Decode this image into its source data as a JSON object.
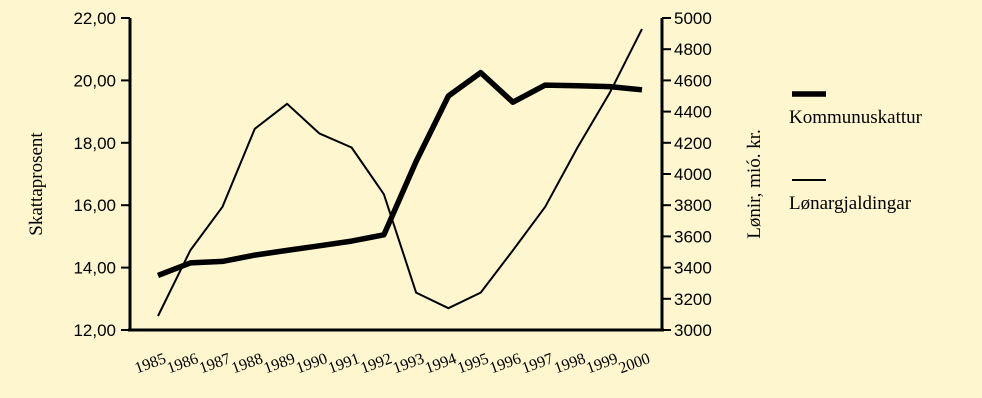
{
  "chart_data": {
    "type": "line",
    "x": [
      "1985",
      "1986",
      "1987",
      "1988",
      "1989",
      "1990",
      "1991",
      "1992",
      "1993",
      "1994",
      "1995",
      "1996",
      "1997",
      "1998",
      "1999",
      "2000"
    ],
    "ylabel_left": "Skattaprosent",
    "ylabel_right": "Lønir, mió. kr.",
    "ylim_left": [
      12,
      22
    ],
    "ylim_right": [
      3000,
      5000
    ],
    "yticks_left": [
      "12,00",
      "14,00",
      "16,00",
      "18,00",
      "20,00",
      "22,00"
    ],
    "yticks_right": [
      "3000",
      "3200",
      "3400",
      "3600",
      "3800",
      "4000",
      "4200",
      "4400",
      "4600",
      "4800",
      "5000"
    ],
    "grid": false,
    "legend_position": "right",
    "series": [
      {
        "name": "Kommunuskattur",
        "axis": "left",
        "style": "thick",
        "color": "#000000",
        "values": [
          13.75,
          14.15,
          14.2,
          14.4,
          14.55,
          14.7,
          14.85,
          15.05,
          17.4,
          19.5,
          20.25,
          19.3,
          19.85,
          19.83,
          19.8,
          19.7
        ]
      },
      {
        "name": "Lønargjaldingar",
        "axis": "right",
        "style": "thin",
        "color": "#000000",
        "values": [
          3090,
          3510,
          3790,
          4290,
          4450,
          4260,
          4170,
          3870,
          3240,
          3140,
          3240,
          3510,
          3790,
          4170,
          4520,
          4930
        ]
      }
    ]
  }
}
